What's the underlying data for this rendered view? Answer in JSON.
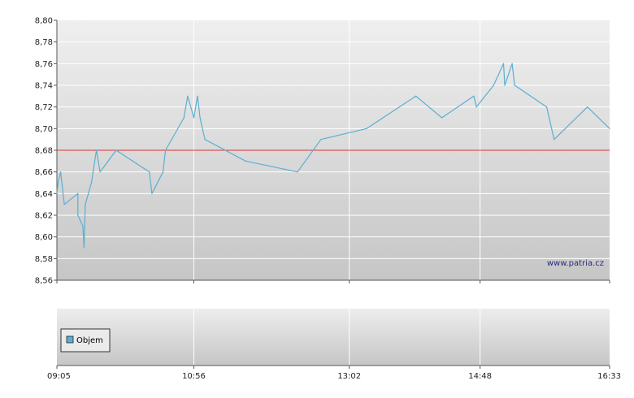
{
  "chart_data": [
    {
      "type": "line",
      "title": "",
      "xlabel": "",
      "ylabel": "",
      "grid": true,
      "ylim": [
        8.56,
        8.8
      ],
      "yticks": [
        "8,80",
        "8,78",
        "8,76",
        "8,74",
        "8,72",
        "8,70",
        "8,68",
        "8,66",
        "8,64",
        "8,62",
        "8,60",
        "8,58",
        "8,56"
      ],
      "xticks": [
        "09:05",
        "10:56",
        "13:02",
        "14:48",
        "16:33"
      ],
      "x_range": [
        "09:05",
        "16:33"
      ],
      "reference_line": {
        "value": 8.68,
        "color": "#dd3333"
      },
      "watermark": "www.patria.cz",
      "series": [
        {
          "color": "#5aafd2",
          "points": [
            [
              "09:05",
              8.64
            ],
            [
              "09:06",
              8.65
            ],
            [
              "09:08",
              8.66
            ],
            [
              "09:11",
              8.63
            ],
            [
              "09:22",
              8.64
            ],
            [
              "09:22",
              8.62
            ],
            [
              "09:26",
              8.61
            ],
            [
              "09:27",
              8.59
            ],
            [
              "09:28",
              8.63
            ],
            [
              "09:33",
              8.65
            ],
            [
              "09:37",
              8.68
            ],
            [
              "09:40",
              8.66
            ],
            [
              "09:53",
              8.68
            ],
            [
              "10:20",
              8.66
            ],
            [
              "10:22",
              8.64
            ],
            [
              "10:31",
              8.66
            ],
            [
              "10:33",
              8.68
            ],
            [
              "10:48",
              8.71
            ],
            [
              "10:51",
              8.73
            ],
            [
              "10:56",
              8.71
            ],
            [
              "10:59",
              8.73
            ],
            [
              "11:01",
              8.71
            ],
            [
              "11:05",
              8.69
            ],
            [
              "11:38",
              8.67
            ],
            [
              "12:20",
              8.66
            ],
            [
              "12:39",
              8.69
            ],
            [
              "13:16",
              8.7
            ],
            [
              "13:56",
              8.73
            ],
            [
              "14:17",
              8.71
            ],
            [
              "14:43",
              8.73
            ],
            [
              "14:45",
              8.72
            ],
            [
              "14:59",
              8.74
            ],
            [
              "15:07",
              8.76
            ],
            [
              "15:08",
              8.74
            ],
            [
              "15:14",
              8.76
            ],
            [
              "15:16",
              8.74
            ],
            [
              "15:42",
              8.72
            ],
            [
              "15:48",
              8.69
            ],
            [
              "16:15",
              8.72
            ],
            [
              "16:33",
              8.7
            ]
          ]
        }
      ]
    },
    {
      "type": "bar",
      "title": "",
      "xlabel": "",
      "ylabel": "",
      "grid": true,
      "legend": {
        "placement": "bottom-left",
        "entries": [
          {
            "name": "Objem",
            "color": "#5aafd2"
          }
        ]
      },
      "series": [
        {
          "name": "Objem",
          "values": []
        }
      ]
    }
  ]
}
